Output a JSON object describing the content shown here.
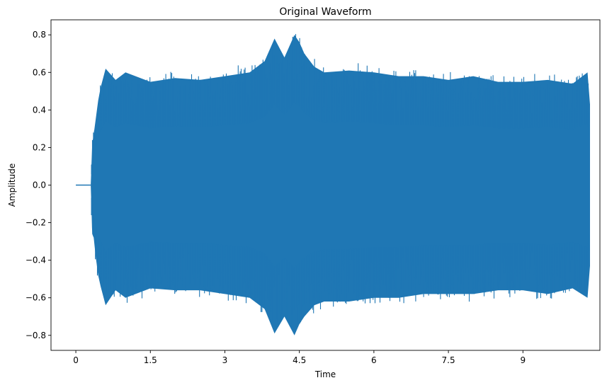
{
  "chart_data": {
    "type": "line",
    "title": "Original Waveform",
    "xlabel": "Time",
    "ylabel": "Amplitude",
    "xlim": [
      -0.5,
      10.55
    ],
    "ylim": [
      -0.88,
      0.88
    ],
    "x_ticks": [
      0,
      1.5,
      3,
      4.5,
      6,
      7.5,
      9
    ],
    "x_tick_labels": [
      "0",
      "1.5",
      "3",
      "4.5",
      "6",
      "7.5",
      "9"
    ],
    "y_ticks": [
      -0.8,
      -0.6,
      -0.4,
      -0.2,
      0.0,
      0.2,
      0.4,
      0.6,
      0.8
    ],
    "y_tick_labels": [
      "−0.8",
      "−0.6",
      "−0.4",
      "−0.2",
      "0.0",
      "0.2",
      "0.4",
      "0.6",
      "0.8"
    ],
    "grid": false,
    "series": [
      {
        "color": "#1f77b4",
        "silence": {
          "x": [
            0,
            0.3
          ],
          "y": 0.0
        },
        "envelope": {
          "x": [
            0.3,
            0.33,
            0.36,
            0.4,
            0.45,
            0.5,
            0.6,
            0.8,
            1.0,
            1.5,
            2.0,
            2.5,
            3.0,
            3.5,
            3.8,
            4.0,
            4.2,
            4.4,
            4.5,
            4.6,
            4.8,
            5.0,
            5.5,
            6.0,
            6.5,
            7.0,
            7.5,
            8.0,
            8.5,
            9.0,
            9.5,
            10.0,
            10.3,
            10.35
          ],
          "upper": [
            0.0,
            0.22,
            0.27,
            0.35,
            0.45,
            0.52,
            0.62,
            0.56,
            0.6,
            0.55,
            0.57,
            0.56,
            0.58,
            0.6,
            0.66,
            0.78,
            0.68,
            0.8,
            0.76,
            0.7,
            0.63,
            0.6,
            0.61,
            0.6,
            0.58,
            0.58,
            0.56,
            0.58,
            0.55,
            0.55,
            0.56,
            0.54,
            0.6,
            0.43
          ],
          "lower": [
            0.0,
            -0.26,
            -0.28,
            -0.38,
            -0.48,
            -0.54,
            -0.64,
            -0.56,
            -0.6,
            -0.55,
            -0.56,
            -0.56,
            -0.58,
            -0.6,
            -0.66,
            -0.79,
            -0.7,
            -0.8,
            -0.74,
            -0.7,
            -0.64,
            -0.62,
            -0.62,
            -0.6,
            -0.6,
            -0.58,
            -0.58,
            -0.58,
            -0.56,
            -0.56,
            -0.58,
            -0.55,
            -0.6,
            -0.43
          ]
        }
      }
    ]
  }
}
